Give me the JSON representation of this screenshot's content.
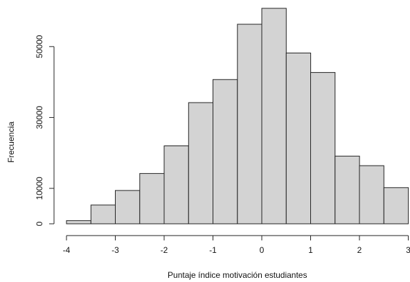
{
  "chart_data": {
    "type": "bar",
    "xlabel": "Puntaje índice motivación estudiantes",
    "ylabel": "Frecuencia",
    "xlim": [
      -4,
      3
    ],
    "ylim": [
      0,
      60000
    ],
    "x_ticks": [
      -4,
      -3,
      -2,
      -1,
      0,
      1,
      2,
      3
    ],
    "x_tick_labels": [
      "-4",
      "-3",
      "-2",
      "-1",
      "0",
      "1",
      "2",
      "3"
    ],
    "y_ticks": [
      0,
      10000,
      30000,
      50000
    ],
    "y_tick_labels": [
      "0",
      "10000",
      "30000",
      "50000"
    ],
    "bins": [
      {
        "x0": -4.0,
        "x1": -3.5,
        "value": 900
      },
      {
        "x0": -3.5,
        "x1": -3.0,
        "value": 5300
      },
      {
        "x0": -3.0,
        "x1": -2.5,
        "value": 9400
      },
      {
        "x0": -2.5,
        "x1": -2.0,
        "value": 14200
      },
      {
        "x0": -2.0,
        "x1": -1.5,
        "value": 22000
      },
      {
        "x0": -1.5,
        "x1": -1.0,
        "value": 34200
      },
      {
        "x0": -1.0,
        "x1": -0.5,
        "value": 40700
      },
      {
        "x0": -0.5,
        "x1": 0.0,
        "value": 56300
      },
      {
        "x0": 0.0,
        "x1": 0.5,
        "value": 60800
      },
      {
        "x0": 0.5,
        "x1": 1.0,
        "value": 48200
      },
      {
        "x0": 1.0,
        "x1": 1.5,
        "value": 42700
      },
      {
        "x0": 1.5,
        "x1": 2.0,
        "value": 19100
      },
      {
        "x0": 2.0,
        "x1": 2.5,
        "value": 16400
      },
      {
        "x0": 2.5,
        "x1": 3.0,
        "value": 10200
      }
    ],
    "grid": false,
    "legend": "none",
    "bar_color": "#d3d3d3",
    "edge_color": "#222222"
  }
}
